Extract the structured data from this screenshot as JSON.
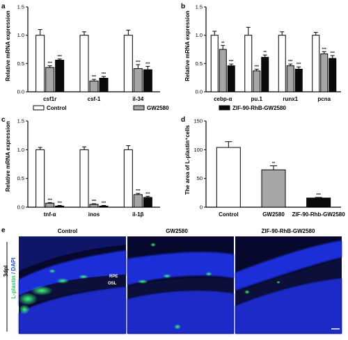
{
  "colors": {
    "control": "#ffffff",
    "gw2580": "#a6a6a6",
    "zif": "#0a0a0a",
    "micro_bg": "#06082e",
    "micro_blue": "#1f2fd8",
    "micro_green": "#36f06a"
  },
  "legend": [
    {
      "label": "Control",
      "color": "#ffffff"
    },
    {
      "label": "GW2580",
      "color": "#a6a6a6"
    },
    {
      "label": "ZIF-90-RhB-GW2580",
      "color": "#0a0a0a"
    }
  ],
  "chart_data": [
    {
      "panel": "a",
      "type": "bar",
      "ylabel": "Relative mRNA expression",
      "ylim": [
        0,
        1.5
      ],
      "yticks": [
        "0.0",
        "0.5",
        "1.0",
        "1.5"
      ],
      "categories": [
        "csf1r",
        "csf-1",
        "il-34"
      ],
      "series": [
        {
          "name": "Control",
          "values": [
            1.0,
            1.0,
            1.0
          ],
          "errors": [
            0.1,
            0.06,
            0.09
          ]
        },
        {
          "name": "GW2580",
          "values": [
            0.43,
            0.19,
            0.41
          ],
          "errors": [
            0.03,
            0.03,
            0.07
          ]
        },
        {
          "name": "ZIF-90-RhB-GW2580",
          "values": [
            0.56,
            0.24,
            0.39
          ],
          "errors": [
            0.02,
            0.03,
            0.06
          ]
        }
      ],
      "significance": [
        [
          "",
          "***",
          "***"
        ],
        [
          "",
          "***",
          "***"
        ],
        [
          "",
          "***",
          "***"
        ]
      ]
    },
    {
      "panel": "b",
      "type": "bar",
      "ylabel": "Relative mRNA expression",
      "ylim": [
        0,
        1.5
      ],
      "yticks": [
        "0.0",
        "0.5",
        "1.0",
        "1.5"
      ],
      "categories": [
        "cebp-α",
        "pu.1",
        "runx1",
        "pcna"
      ],
      "series": [
        {
          "name": "Control",
          "values": [
            1.0,
            1.0,
            1.0,
            1.0
          ],
          "errors": [
            0.07,
            0.14,
            0.06,
            0.05
          ]
        },
        {
          "name": "GW2580",
          "values": [
            0.75,
            0.37,
            0.46,
            0.67
          ],
          "errors": [
            0.07,
            0.03,
            0.03,
            0.04
          ]
        },
        {
          "name": "ZIF-90-RhB-GW2580",
          "values": [
            0.46,
            0.61,
            0.4,
            0.59
          ],
          "errors": [
            0.03,
            0.04,
            0.04,
            0.05
          ]
        }
      ],
      "significance": [
        [
          "",
          "**",
          "***"
        ],
        [
          "",
          "***",
          "**"
        ],
        [
          "",
          "***",
          "***"
        ],
        [
          "",
          "***",
          "***"
        ]
      ]
    },
    {
      "panel": "c",
      "type": "bar",
      "ylabel": "Relative mRNA expression",
      "ylim": [
        0,
        1.5
      ],
      "yticks": [
        "0.0",
        "0.5",
        "1.0",
        "1.5"
      ],
      "categories": [
        "tnf-α",
        "inos",
        "il-1β"
      ],
      "series": [
        {
          "name": "Control",
          "values": [
            1.0,
            1.0,
            1.0
          ],
          "errors": [
            0.04,
            0.05,
            0.07
          ]
        },
        {
          "name": "GW2580",
          "values": [
            0.07,
            0.05,
            0.22
          ],
          "errors": [
            0.01,
            0.01,
            0.02
          ]
        },
        {
          "name": "ZIF-90-RhB-GW2580",
          "values": [
            0.02,
            0.02,
            0.17
          ],
          "errors": [
            0.01,
            0.01,
            0.02
          ]
        }
      ],
      "significance": [
        [
          "",
          "***",
          "***"
        ],
        [
          "",
          "***",
          "***"
        ],
        [
          "",
          "***",
          "***"
        ]
      ]
    },
    {
      "panel": "d",
      "type": "bar",
      "ylabel": "The area of L-plastin⁺cells",
      "ylim": [
        0,
        150
      ],
      "yticks": [
        "0",
        "50",
        "100",
        "150"
      ],
      "categories": [
        "Control",
        "GW2580",
        "ZIF-90-Rhb-GW2580"
      ],
      "values": [
        104,
        65,
        16
      ],
      "errors": [
        10,
        7,
        1
      ],
      "significance": [
        "",
        "**",
        "***"
      ]
    }
  ],
  "panel_e": {
    "label": "e",
    "row_label": "3dpl",
    "stain_label_a": "L-plastin",
    "stain_label_sep": " / ",
    "stain_label_b": "DAPI",
    "titles": [
      "Control",
      "GW2580",
      "ZIF-90-RhB-GW2580"
    ],
    "layer_labels": [
      "RPE",
      "OSL"
    ]
  }
}
